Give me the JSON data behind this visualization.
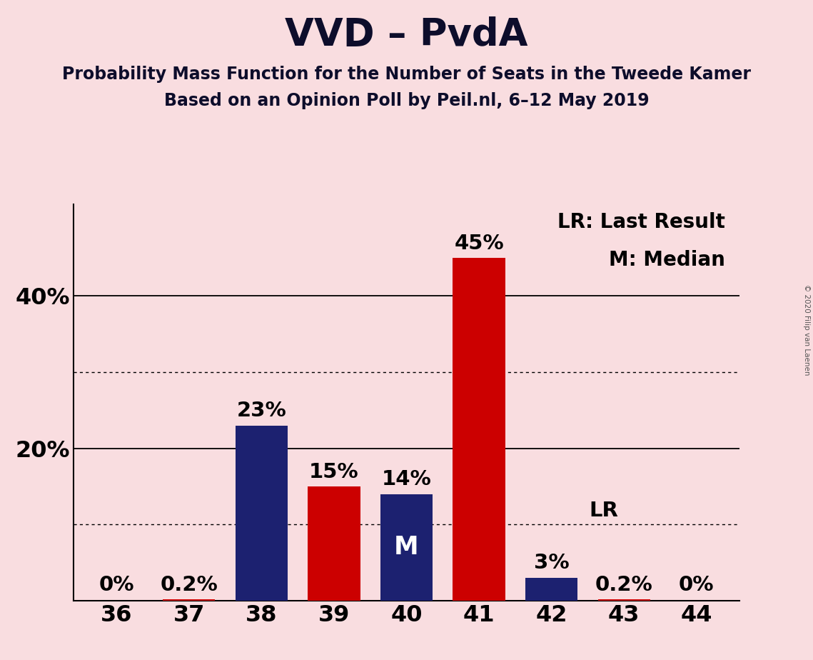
{
  "title": "VVD – PvdA",
  "subtitle1": "Probability Mass Function for the Number of Seats in the Tweede Kamer",
  "subtitle2": "Based on an Opinion Poll by Peil.nl, 6–12 May 2019",
  "copyright": "© 2020 Filip van Laenen",
  "categories": [
    36,
    37,
    38,
    39,
    40,
    41,
    42,
    43,
    44
  ],
  "values": [
    0.0,
    0.2,
    23.0,
    15.0,
    14.0,
    45.0,
    3.0,
    0.2,
    0.0
  ],
  "colors": [
    "#cc0000",
    "#cc0000",
    "#1c2170",
    "#cc0000",
    "#1c2170",
    "#cc0000",
    "#1c2170",
    "#cc0000",
    "#cc0000"
  ],
  "labels": [
    "0%",
    "0.2%",
    "23%",
    "15%",
    "14%",
    "45%",
    "3%",
    "0.2%",
    "0%"
  ],
  "background_color": "#f9dde0",
  "median_seat": 40,
  "last_result_seat": 42,
  "solid_gridlines": [
    20.0,
    40.0
  ],
  "dotted_gridlines": [
    10.0,
    30.0
  ],
  "legend_text1": "LR: Last Result",
  "legend_text2": "M: Median",
  "lr_label": "LR",
  "median_label": "M",
  "title_fontsize": 38,
  "subtitle_fontsize": 17,
  "label_fontsize": 21,
  "tick_fontsize": 23,
  "legend_fontsize": 20,
  "ylim": [
    0,
    52
  ],
  "figsize": [
    11.39,
    9.24
  ],
  "dpi": 100
}
